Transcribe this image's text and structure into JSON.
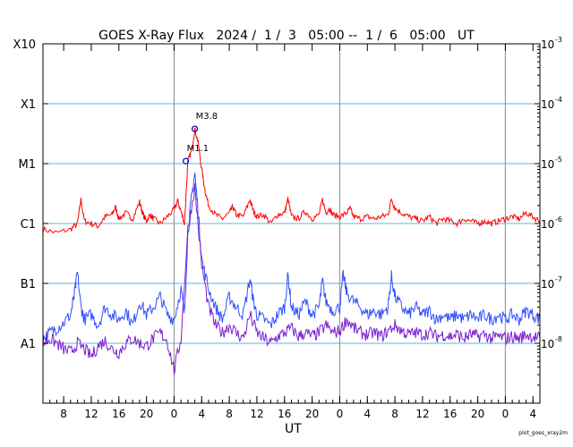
{
  "title": "GOES X-Ray Flux   2024 /  1 /  3   05:00 --  1 /  6   05:00   UT",
  "credit": "plot_goes_xray2m",
  "chart_data": {
    "type": "line",
    "title": "GOES X-Ray Flux   2024 /  1 /  3   05:00 --  1 /  6   05:00   UT",
    "xlabel": "UT",
    "ylabel": "",
    "x_range_hours": [
      0,
      72
    ],
    "y_scale": "log",
    "ylim": [
      1e-09,
      0.001
    ],
    "x_ticks": [
      {
        "h": 3,
        "label": "8"
      },
      {
        "h": 7,
        "label": "12"
      },
      {
        "h": 11,
        "label": "16"
      },
      {
        "h": 15,
        "label": "20"
      },
      {
        "h": 19,
        "label": "0"
      },
      {
        "h": 23,
        "label": "4"
      },
      {
        "h": 27,
        "label": "8"
      },
      {
        "h": 31,
        "label": "12"
      },
      {
        "h": 35,
        "label": "16"
      },
      {
        "h": 39,
        "label": "20"
      },
      {
        "h": 43,
        "label": "0"
      },
      {
        "h": 47,
        "label": "4"
      },
      {
        "h": 51,
        "label": "8"
      },
      {
        "h": 55,
        "label": "12"
      },
      {
        "h": 59,
        "label": "16"
      },
      {
        "h": 63,
        "label": "20"
      },
      {
        "h": 67,
        "label": "0"
      },
      {
        "h": 71,
        "label": "4"
      }
    ],
    "day_boundaries_hours": [
      19,
      43,
      67
    ],
    "left_ticks": [
      {
        "v": 0.001,
        "label": "X10"
      },
      {
        "v": 0.0001,
        "label": "X1"
      },
      {
        "v": 1e-05,
        "label": "M1"
      },
      {
        "v": 1e-06,
        "label": "C1"
      },
      {
        "v": 1e-07,
        "label": "B1"
      },
      {
        "v": 1e-08,
        "label": "A1"
      }
    ],
    "right_ticks": [
      {
        "v": 0.001,
        "exp": "-3"
      },
      {
        "v": 0.0001,
        "exp": "-4"
      },
      {
        "v": 1e-05,
        "exp": "-5"
      },
      {
        "v": 1e-06,
        "exp": "-6"
      },
      {
        "v": 1e-07,
        "exp": "-7"
      },
      {
        "v": 1e-08,
        "exp": "-8"
      }
    ],
    "grid_lines": [
      0.0001,
      1e-05,
      1e-06,
      1e-07,
      1e-08
    ],
    "series": [
      {
        "color": "#ff0000",
        "points": [
          [
            0.0,
            8e-07
          ],
          [
            2.0,
            7e-07
          ],
          [
            4.0,
            8e-07
          ],
          [
            5.0,
            1e-06
          ],
          [
            5.5,
            2.5e-06
          ],
          [
            6.0,
            1.1e-06
          ],
          [
            7.0,
            1e-06
          ],
          [
            8.0,
            9e-07
          ],
          [
            9.0,
            1.3e-06
          ],
          [
            10.0,
            1.4e-06
          ],
          [
            10.5,
            1.9e-06
          ],
          [
            11.0,
            1.2e-06
          ],
          [
            12.0,
            1.5e-06
          ],
          [
            13.0,
            1.2e-06
          ],
          [
            14.0,
            2.3e-06
          ],
          [
            14.5,
            1.4e-06
          ],
          [
            15.0,
            1.1e-06
          ],
          [
            15.5,
            1.4e-06
          ],
          [
            16.0,
            1.2e-06
          ],
          [
            17.0,
            1e-06
          ],
          [
            18.0,
            1.3e-06
          ],
          [
            19.0,
            1.7e-06
          ],
          [
            19.5,
            2.4e-06
          ],
          [
            20.0,
            1.6e-06
          ],
          [
            20.5,
            1e-06
          ],
          [
            21.0,
            1.1e-05
          ],
          [
            21.5,
            1.6e-05
          ],
          [
            22.0,
            3.8e-05
          ],
          [
            22.5,
            2.2e-05
          ],
          [
            23.0,
            8e-06
          ],
          [
            23.5,
            3.5e-06
          ],
          [
            24.0,
            2e-06
          ],
          [
            25.0,
            1.4e-06
          ],
          [
            26.0,
            1.2e-06
          ],
          [
            27.0,
            1.5e-06
          ],
          [
            27.5,
            1.9e-06
          ],
          [
            28.0,
            1.4e-06
          ],
          [
            29.0,
            1.3e-06
          ],
          [
            30.0,
            2.5e-06
          ],
          [
            30.5,
            1.6e-06
          ],
          [
            31.0,
            1.3e-06
          ],
          [
            32.0,
            1.4e-06
          ],
          [
            33.0,
            1e-06
          ],
          [
            34.0,
            1.4e-06
          ],
          [
            35.0,
            1.5e-06
          ],
          [
            35.5,
            2.6e-06
          ],
          [
            36.0,
            1.3e-06
          ],
          [
            37.0,
            1.2e-06
          ],
          [
            38.0,
            1.6e-06
          ],
          [
            39.0,
            1.2e-06
          ],
          [
            40.0,
            1.4e-06
          ],
          [
            40.5,
            2.5e-06
          ],
          [
            41.0,
            1.5e-06
          ],
          [
            41.5,
            1.8e-06
          ],
          [
            42.0,
            1.4e-06
          ],
          [
            43.0,
            1.3e-06
          ],
          [
            44.0,
            1.5e-06
          ],
          [
            44.5,
            1.8e-06
          ],
          [
            45.0,
            1.3e-06
          ],
          [
            46.0,
            1.2e-06
          ],
          [
            47.0,
            1.3e-06
          ],
          [
            48.0,
            1.2e-06
          ],
          [
            49.0,
            1.3e-06
          ],
          [
            50.0,
            1.4e-06
          ],
          [
            50.5,
            2.6e-06
          ],
          [
            51.0,
            1.8e-06
          ],
          [
            52.0,
            1.5e-06
          ],
          [
            53.0,
            1.3e-06
          ],
          [
            54.0,
            1.2e-06
          ],
          [
            55.0,
            1.1e-06
          ],
          [
            56.0,
            1.3e-06
          ],
          [
            57.0,
            1e-06
          ],
          [
            58.0,
            1.2e-06
          ],
          [
            59.0,
            1.1e-06
          ],
          [
            60.0,
            1e-06
          ],
          [
            61.0,
            1.2e-06
          ],
          [
            62.0,
            1.1e-06
          ],
          [
            63.0,
            1e-06
          ],
          [
            64.0,
            1.1e-06
          ],
          [
            65.0,
            1e-06
          ],
          [
            66.0,
            1.1e-06
          ],
          [
            67.0,
            1.2e-06
          ],
          [
            68.0,
            1.3e-06
          ],
          [
            69.0,
            1.2e-06
          ],
          [
            70.0,
            1.5e-06
          ],
          [
            71.0,
            1.3e-06
          ],
          [
            72.0,
            1.1e-06
          ]
        ]
      },
      {
        "color": "#3050ff",
        "points": [
          [
            0.0,
            1.2e-08
          ],
          [
            1.0,
            1.5e-08
          ],
          [
            2.0,
            1.8e-08
          ],
          [
            3.0,
            2.2e-08
          ],
          [
            4.0,
            3e-08
          ],
          [
            4.5,
            6e-08
          ],
          [
            5.0,
            1.5e-07
          ],
          [
            5.5,
            4e-08
          ],
          [
            6.0,
            2.5e-08
          ],
          [
            7.0,
            3e-08
          ],
          [
            8.0,
            2e-08
          ],
          [
            9.0,
            4e-08
          ],
          [
            10.0,
            3e-08
          ],
          [
            11.0,
            2.5e-08
          ],
          [
            12.0,
            3.5e-08
          ],
          [
            13.0,
            2e-08
          ],
          [
            14.0,
            5e-08
          ],
          [
            15.0,
            3e-08
          ],
          [
            16.0,
            4e-08
          ],
          [
            17.0,
            6e-08
          ],
          [
            18.0,
            3e-08
          ],
          [
            19.0,
            2.5e-08
          ],
          [
            20.0,
            8e-08
          ],
          [
            20.5,
            3e-08
          ],
          [
            21.0,
            7e-07
          ],
          [
            21.5,
            2.5e-06
          ],
          [
            22.0,
            7e-06
          ],
          [
            22.5,
            1.5e-06
          ],
          [
            23.0,
            2.5e-07
          ],
          [
            24.0,
            8e-08
          ],
          [
            25.0,
            4e-08
          ],
          [
            26.0,
            2.5e-08
          ],
          [
            27.0,
            6e-08
          ],
          [
            28.0,
            4e-08
          ],
          [
            29.0,
            3e-08
          ],
          [
            30.0,
            1.2e-07
          ],
          [
            30.5,
            5e-08
          ],
          [
            31.0,
            3e-08
          ],
          [
            32.0,
            2.5e-08
          ],
          [
            33.0,
            2e-08
          ],
          [
            34.0,
            3e-08
          ],
          [
            35.0,
            4e-08
          ],
          [
            35.5,
            1.4e-07
          ],
          [
            36.0,
            4e-08
          ],
          [
            37.0,
            3e-08
          ],
          [
            38.0,
            5e-08
          ],
          [
            39.0,
            3e-08
          ],
          [
            40.0,
            4e-08
          ],
          [
            40.5,
            1.1e-07
          ],
          [
            41.0,
            5e-08
          ],
          [
            42.0,
            3.5e-08
          ],
          [
            43.0,
            4e-08
          ],
          [
            43.5,
            1.4e-07
          ],
          [
            44.0,
            7e-08
          ],
          [
            45.0,
            5e-08
          ],
          [
            46.0,
            4e-08
          ],
          [
            47.0,
            3e-08
          ],
          [
            48.0,
            3.5e-08
          ],
          [
            49.0,
            3e-08
          ],
          [
            50.0,
            4e-08
          ],
          [
            50.5,
            1.3e-07
          ],
          [
            51.0,
            6e-08
          ],
          [
            52.0,
            4e-08
          ],
          [
            53.0,
            3e-08
          ],
          [
            54.0,
            4e-08
          ],
          [
            55.0,
            3e-08
          ],
          [
            56.0,
            3.5e-08
          ],
          [
            57.0,
            2.5e-08
          ],
          [
            58.0,
            3e-08
          ],
          [
            59.0,
            2.5e-08
          ],
          [
            60.0,
            3e-08
          ],
          [
            61.0,
            2.5e-08
          ],
          [
            62.0,
            3e-08
          ],
          [
            63.0,
            2.5e-08
          ],
          [
            64.0,
            3e-08
          ],
          [
            65.0,
            2.5e-08
          ],
          [
            66.0,
            3e-08
          ],
          [
            67.0,
            2.5e-08
          ],
          [
            68.0,
            3e-08
          ],
          [
            69.0,
            2.5e-08
          ],
          [
            70.0,
            3.5e-08
          ],
          [
            71.0,
            3e-08
          ],
          [
            72.0,
            2.5e-08
          ]
        ]
      },
      {
        "color": "#7a1fd0",
        "points": [
          [
            0.0,
            1e-08
          ],
          [
            1.0,
            1.2e-08
          ],
          [
            2.0,
            1e-08
          ],
          [
            3.0,
            8e-09
          ],
          [
            4.0,
            7e-09
          ],
          [
            5.0,
            1e-08
          ],
          [
            6.0,
            8e-09
          ],
          [
            7.0,
            6e-09
          ],
          [
            8.0,
            9e-09
          ],
          [
            9.0,
            1.1e-08
          ],
          [
            10.0,
            8e-09
          ],
          [
            11.0,
            7e-09
          ],
          [
            12.0,
            1e-08
          ],
          [
            13.0,
            1.2e-08
          ],
          [
            14.0,
            1e-08
          ],
          [
            15.0,
            9e-09
          ],
          [
            16.0,
            1.2e-08
          ],
          [
            17.0,
            1.5e-08
          ],
          [
            18.0,
            1.1e-08
          ],
          [
            19.0,
            3.5e-09
          ],
          [
            20.0,
            1.2e-08
          ],
          [
            21.0,
            8e-07
          ],
          [
            22.0,
            4e-06
          ],
          [
            23.0,
            2e-07
          ],
          [
            24.0,
            4e-08
          ],
          [
            25.0,
            2e-08
          ],
          [
            26.0,
            1.5e-08
          ],
          [
            27.0,
            2e-08
          ],
          [
            28.0,
            1.5e-08
          ],
          [
            29.0,
            1.2e-08
          ],
          [
            30.0,
            3e-08
          ],
          [
            31.0,
            1.5e-08
          ],
          [
            32.0,
            1.2e-08
          ],
          [
            33.0,
            1e-08
          ],
          [
            34.0,
            1.3e-08
          ],
          [
            35.0,
            1.5e-08
          ],
          [
            36.0,
            1.8e-08
          ],
          [
            37.0,
            1.3e-08
          ],
          [
            38.0,
            1.5e-08
          ],
          [
            39.0,
            1.3e-08
          ],
          [
            40.0,
            1.5e-08
          ],
          [
            41.0,
            2e-08
          ],
          [
            42.0,
            1.5e-08
          ],
          [
            43.0,
            1.6e-08
          ],
          [
            44.0,
            2.5e-08
          ],
          [
            45.0,
            1.8e-08
          ],
          [
            46.0,
            1.5e-08
          ],
          [
            47.0,
            1.4e-08
          ],
          [
            48.0,
            1.5e-08
          ],
          [
            49.0,
            1.3e-08
          ],
          [
            50.0,
            1.6e-08
          ],
          [
            51.0,
            2e-08
          ],
          [
            52.0,
            1.6e-08
          ],
          [
            53.0,
            1.4e-08
          ],
          [
            54.0,
            1.5e-08
          ],
          [
            55.0,
            1.4e-08
          ],
          [
            56.0,
            1.5e-08
          ],
          [
            57.0,
            1.3e-08
          ],
          [
            58.0,
            1.4e-08
          ],
          [
            59.0,
            1.3e-08
          ],
          [
            60.0,
            1.4e-08
          ],
          [
            61.0,
            1.2e-08
          ],
          [
            62.0,
            1.4e-08
          ],
          [
            63.0,
            1.3e-08
          ],
          [
            64.0,
            1.4e-08
          ],
          [
            65.0,
            1.2e-08
          ],
          [
            66.0,
            1.3e-08
          ],
          [
            67.0,
            1.2e-08
          ],
          [
            68.0,
            1.3e-08
          ],
          [
            69.0,
            1.2e-08
          ],
          [
            70.0,
            1.4e-08
          ],
          [
            71.0,
            1.3e-08
          ],
          [
            72.0,
            1.2e-08
          ]
        ]
      }
    ],
    "annotations": [
      {
        "text": "M3.8",
        "h": 22.0,
        "v": 3.8e-05,
        "marker_color": "#0000cc",
        "text_color": "#000000"
      },
      {
        "text": "M1.1",
        "h": 20.7,
        "v": 1.1e-05,
        "marker_color": "#0000cc",
        "text_color": "#000000"
      }
    ],
    "colors": {
      "grid": "#5ab4e6",
      "day_line": "#999999",
      "axis": "#000000"
    }
  }
}
